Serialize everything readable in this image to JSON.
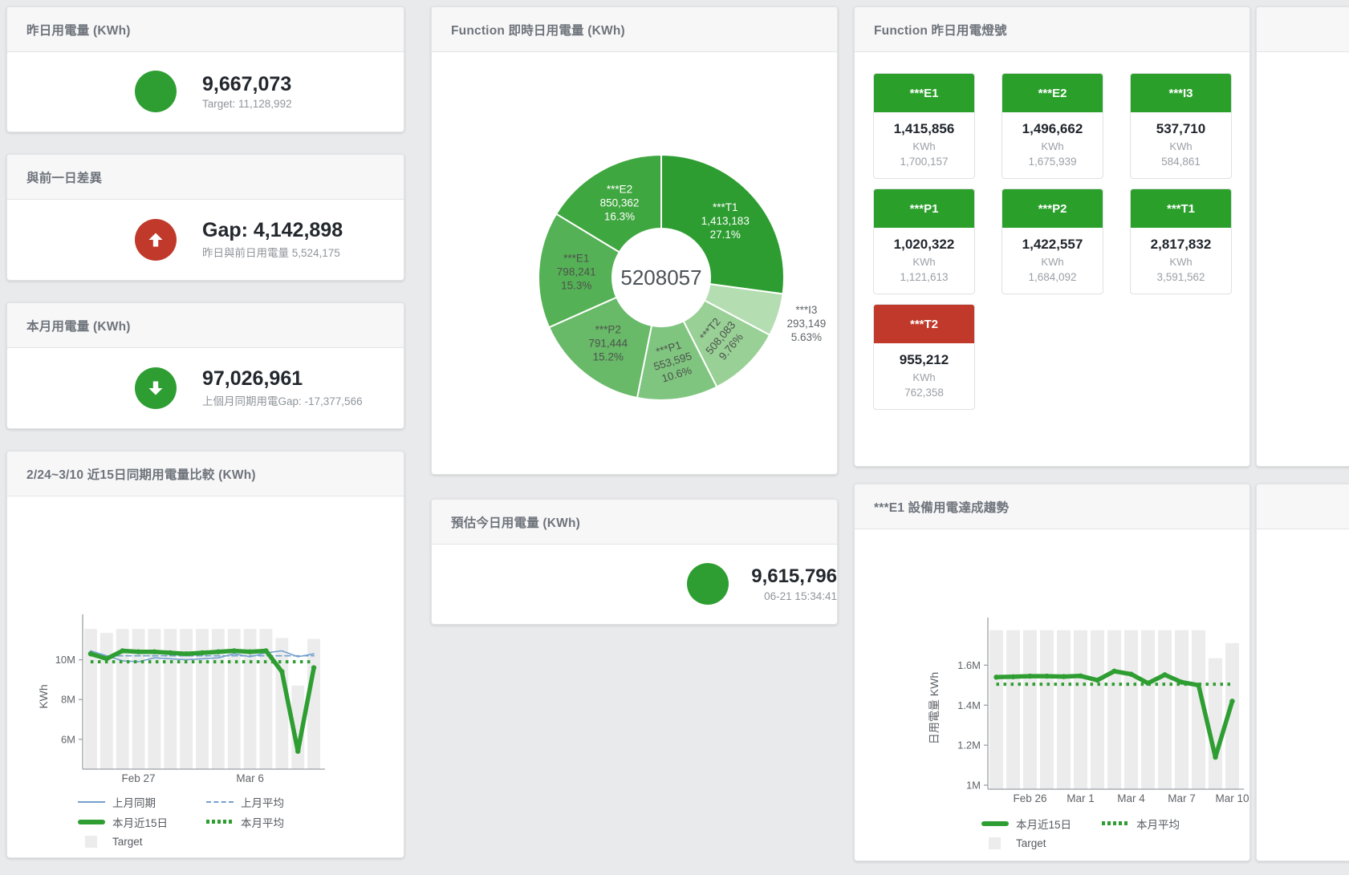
{
  "colors": {
    "green": "#2f9e32",
    "tile_green": "#2aa02a",
    "red": "#c0392b",
    "blue_line": "#74a0ce",
    "bar_gray": "#ececec",
    "page_bg": "#e9eaec"
  },
  "stat_cards": [
    {
      "title": "昨日用電量 (KWh)",
      "icon": "circle",
      "icon_color": "#2f9e32",
      "value": "9,667,073",
      "sub": "Target: 11,128,992"
    },
    {
      "title": "與前一日差異",
      "icon": "arrow-up",
      "icon_color": "#c0392b",
      "value": "Gap: 4,142,898",
      "sub": "昨日與前日用電量 5,524,175"
    },
    {
      "title": "本月用電量 (KWh)",
      "icon": "arrow-down",
      "icon_color": "#2f9e32",
      "value": "97,026,961",
      "sub": "上個月同期用電Gap: -17,377,566"
    },
    {
      "title": "預估今日用電量 (KWh)",
      "icon": "circle",
      "icon_color": "#2f9e32",
      "value": "9,615,796",
      "sub": "06-21 15:34:41"
    }
  ],
  "lights": {
    "title": "Function 昨日用電燈號",
    "unit": "KWh",
    "tiles": [
      {
        "name": "***E1",
        "value": "1,415,856",
        "target": "1,700,157",
        "header_color": "#2aa02a"
      },
      {
        "name": "***E2",
        "value": "1,496,662",
        "target": "1,675,939",
        "header_color": "#2aa02a"
      },
      {
        "name": "***I3",
        "value": "537,710",
        "target": "584,861",
        "header_color": "#2aa02a"
      },
      {
        "name": "***P1",
        "value": "1,020,322",
        "target": "1,121,613",
        "header_color": "#2aa02a"
      },
      {
        "name": "***P2",
        "value": "1,422,557",
        "target": "1,684,092",
        "header_color": "#2aa02a"
      },
      {
        "name": "***T1",
        "value": "2,817,832",
        "target": "3,591,562",
        "header_color": "#2aa02a"
      },
      {
        "name": "***T2",
        "value": "955,212",
        "target": "762,358",
        "header_color": "#c0392b"
      }
    ]
  },
  "chart_data": [
    {
      "id": "realtime_donut",
      "type": "pie",
      "title": "Function 即時日用電量 (KWh)",
      "center_label": "5208057",
      "slices": [
        {
          "name": "***T1",
          "value": 1413183,
          "value_label": "1,413,183",
          "pct": "27.1%",
          "color": "#2e9d31",
          "label_pos": "inside",
          "text_color": "#ffffff"
        },
        {
          "name": "***I3",
          "value": 293149,
          "value_label": "293,149",
          "pct": "5.63%",
          "color": "#b5ddb2",
          "label_pos": "outside",
          "text_color": "#5f6568"
        },
        {
          "name": "***T2",
          "value": 508083,
          "value_label": "508,083",
          "pct": "9.76%",
          "color": "#98d095",
          "label_pos": "inside",
          "text_color": "#4d534d"
        },
        {
          "name": "***P1",
          "value": 553595,
          "value_label": "553,595",
          "pct": "10.6%",
          "color": "#7fc57f",
          "label_pos": "inside",
          "text_color": "#4d534d"
        },
        {
          "name": "***P2",
          "value": 791444,
          "value_label": "791,444",
          "pct": "15.2%",
          "color": "#68b968",
          "label_pos": "inside",
          "text_color": "#4d534d"
        },
        {
          "name": "***E1",
          "value": 798241,
          "value_label": "798,241",
          "pct": "15.3%",
          "color": "#55b155",
          "label_pos": "inside",
          "text_color": "#4d534d"
        },
        {
          "name": "***E2",
          "value": 850362,
          "value_label": "850,362",
          "pct": "16.3%",
          "color": "#3fa73f",
          "label_pos": "inside",
          "text_color": "#ffffff"
        }
      ]
    },
    {
      "id": "compare15",
      "type": "line",
      "title": "2/24~3/10 近15日同期用電量比較 (KWh)",
      "ylabel": "KWh",
      "unit": "M KWh",
      "categories": [
        "2/24",
        "2/25",
        "2/26",
        "2/27",
        "2/28",
        "3/1",
        "3/2",
        "3/3",
        "3/4",
        "3/5",
        "3/6",
        "3/7",
        "3/8",
        "3/9",
        "3/10"
      ],
      "ylim": [
        4.5,
        11.8
      ],
      "y_ticks": [
        {
          "v": 6,
          "label": "6M"
        },
        {
          "v": 8,
          "label": "8M"
        },
        {
          "v": 10,
          "label": "10M"
        }
      ],
      "x_ticks": [
        {
          "i": 3,
          "label": "Feb 27"
        },
        {
          "i": 10,
          "label": "Mar 6"
        }
      ],
      "series": [
        {
          "name": "Target",
          "type": "bar",
          "color": "#ececec",
          "values": [
            11.55,
            11.35,
            11.55,
            11.55,
            11.55,
            11.55,
            11.55,
            11.55,
            11.55,
            11.55,
            11.55,
            11.55,
            11.1,
            8.7,
            11.05
          ]
        },
        {
          "name": "上月同期",
          "type": "line",
          "style": "solid",
          "width": 1.6,
          "color": "#74a0ce",
          "values": [
            10.45,
            10.2,
            9.95,
            9.9,
            10.1,
            10.05,
            10.0,
            10.05,
            10.1,
            10.3,
            10.15,
            10.35,
            10.45,
            10.15,
            10.3
          ]
        },
        {
          "name": "上月平均",
          "type": "line",
          "style": "dashed",
          "width": 1.6,
          "color": "#74a0ce",
          "values": [
            10.2,
            10.2,
            10.2,
            10.2,
            10.2,
            10.2,
            10.2,
            10.2,
            10.2,
            10.2,
            10.2,
            10.2,
            10.2,
            10.2,
            10.2
          ]
        },
        {
          "name": "本月平均",
          "type": "line",
          "style": "dotted",
          "width": 4,
          "color": "#2f9e32",
          "values": [
            9.9,
            9.9,
            9.9,
            9.9,
            9.9,
            9.9,
            9.9,
            9.9,
            9.9,
            9.9,
            9.9,
            9.9,
            9.9,
            9.9,
            9.9
          ]
        },
        {
          "name": "本月近15日",
          "type": "line",
          "style": "solid",
          "width": 5.5,
          "color": "#2f9e32",
          "markers": true,
          "values": [
            10.3,
            10.05,
            10.45,
            10.4,
            10.4,
            10.35,
            10.3,
            10.35,
            10.4,
            10.45,
            10.4,
            10.45,
            9.4,
            5.4,
            9.6
          ]
        }
      ],
      "legend": [
        {
          "label": "上月同期",
          "type": "line",
          "color": "#74a0ce"
        },
        {
          "label": "上月平均",
          "type": "dashed",
          "color": "#74a0ce"
        },
        {
          "label": "本月近15日",
          "type": "thick",
          "color": "#2f9e32"
        },
        {
          "label": "本月平均",
          "type": "dots",
          "color": "#2f9e32"
        },
        {
          "label": "Target",
          "type": "square",
          "color": "#ececec",
          "full": true
        }
      ]
    },
    {
      "id": "e1_trend",
      "type": "line",
      "title": "***E1 設備用電達成趨勢",
      "ylabel": "日用電量 KWh",
      "unit": "M KWh",
      "categories": [
        "2/24",
        "2/25",
        "2/26",
        "2/27",
        "2/28",
        "3/1",
        "3/2",
        "3/3",
        "3/4",
        "3/5",
        "3/6",
        "3/7",
        "3/8",
        "3/9",
        "3/10"
      ],
      "ylim": [
        0.98,
        1.79
      ],
      "y_ticks": [
        {
          "v": 1,
          "label": "1M"
        },
        {
          "v": 1.2,
          "label": "1.2M"
        },
        {
          "v": 1.4,
          "label": "1.4M"
        },
        {
          "v": 1.6,
          "label": "1.6M"
        }
      ],
      "x_ticks": [
        {
          "i": 2,
          "label": "Feb 26"
        },
        {
          "i": 5,
          "label": "Mar 1"
        },
        {
          "i": 8,
          "label": "Mar 4"
        },
        {
          "i": 11,
          "label": "Mar 7"
        },
        {
          "i": 14,
          "label": "Mar 10"
        }
      ],
      "series": [
        {
          "name": "Target",
          "type": "bar",
          "color": "#ececec",
          "values": [
            1.775,
            1.775,
            1.775,
            1.775,
            1.775,
            1.775,
            1.775,
            1.775,
            1.775,
            1.775,
            1.775,
            1.775,
            1.775,
            1.635,
            1.71
          ]
        },
        {
          "name": "本月平均",
          "type": "line",
          "style": "dotted",
          "width": 4,
          "color": "#2f9e32",
          "values": [
            1.505,
            1.505,
            1.505,
            1.505,
            1.505,
            1.505,
            1.505,
            1.505,
            1.505,
            1.505,
            1.505,
            1.505,
            1.505,
            1.505,
            1.505
          ]
        },
        {
          "name": "本月近15日",
          "type": "line",
          "style": "solid",
          "width": 5.5,
          "color": "#2f9e32",
          "markers": true,
          "values": [
            1.54,
            1.542,
            1.545,
            1.545,
            1.543,
            1.546,
            1.525,
            1.57,
            1.555,
            1.51,
            1.552,
            1.515,
            1.5,
            1.14,
            1.42
          ]
        }
      ],
      "legend": [
        {
          "label": "本月近15日",
          "type": "thick",
          "color": "#2f9e32"
        },
        {
          "label": "本月平均",
          "type": "dots",
          "color": "#2f9e32"
        },
        {
          "label": "Target",
          "type": "square",
          "color": "#ececec",
          "full": true
        }
      ]
    }
  ]
}
